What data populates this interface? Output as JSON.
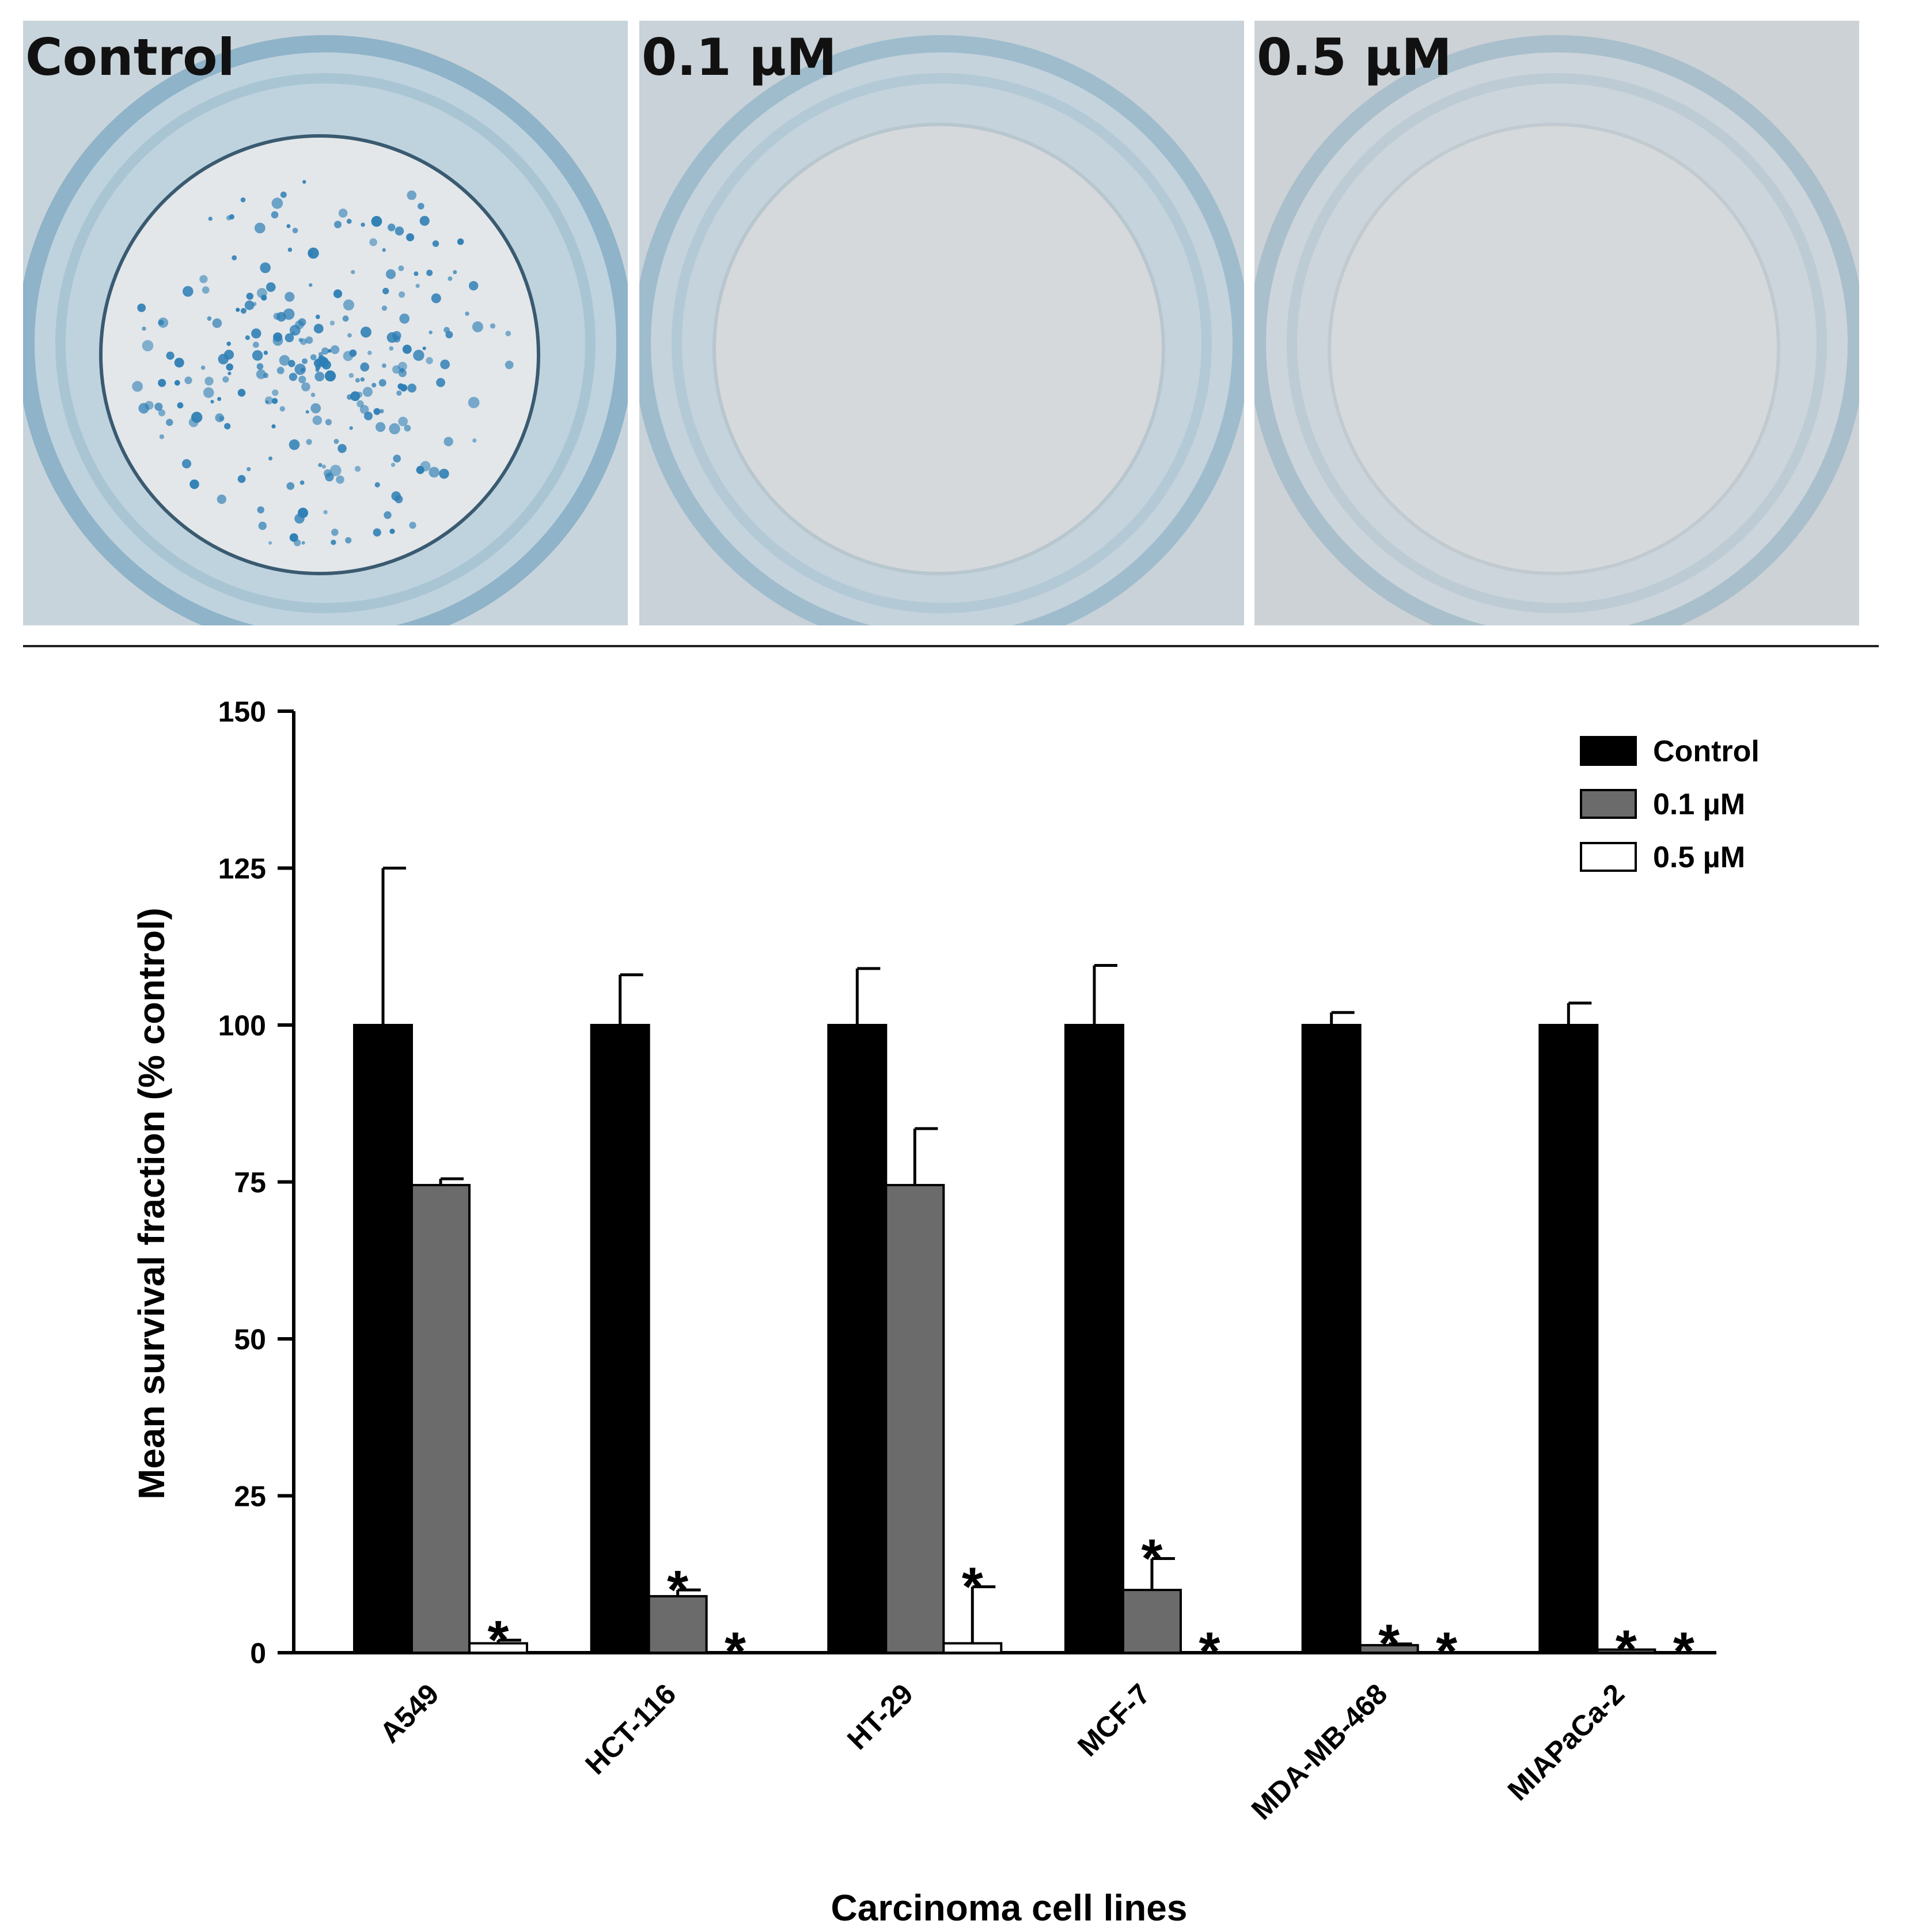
{
  "panels": [
    {
      "label": "Control",
      "colonies": true
    },
    {
      "label": "0.1 µM",
      "colonies": false
    },
    {
      "label": "0.5 µM",
      "colonies": false
    }
  ],
  "colors": {
    "control": "#000000",
    "low": "#6b6b6b",
    "high": "#ffffff",
    "colony": "#2f7fb5",
    "dish": "#c9d6dd"
  },
  "chart_data": {
    "type": "bar",
    "title": "",
    "xlabel": "Carcinoma cell lines",
    "ylabel": "Mean survival fraction (% control)",
    "ylim": [
      0,
      150
    ],
    "yticks": [
      0,
      25,
      50,
      75,
      100,
      125,
      150
    ],
    "categories": [
      "A549",
      "HCT-116",
      "HT-29",
      "MCF-7",
      "MDA-MB-468",
      "MIAPaCa-2"
    ],
    "legend_position": "top-right",
    "grid": false,
    "series": [
      {
        "name": "Control",
        "color": "#000000",
        "values": [
          100,
          100,
          100,
          100,
          100,
          100
        ],
        "errors": [
          25,
          8,
          9,
          9.5,
          2,
          3.5
        ],
        "significant": [
          false,
          false,
          false,
          false,
          false,
          false
        ]
      },
      {
        "name": "0.1 µM",
        "color": "#6b6b6b",
        "values": [
          74.5,
          9,
          74.5,
          10,
          1.2,
          0.5
        ],
        "errors": [
          1,
          1,
          9,
          5,
          0.2,
          0.1
        ],
        "significant": [
          false,
          true,
          false,
          true,
          true,
          true
        ]
      },
      {
        "name": "0.5 µM",
        "color": "#ffffff",
        "values": [
          1.5,
          0,
          1.5,
          0,
          0,
          0
        ],
        "errors": [
          0.5,
          0,
          9,
          0,
          0,
          0
        ],
        "significant": [
          true,
          true,
          true,
          true,
          true,
          true
        ]
      }
    ],
    "annotation_symbol": "*"
  }
}
